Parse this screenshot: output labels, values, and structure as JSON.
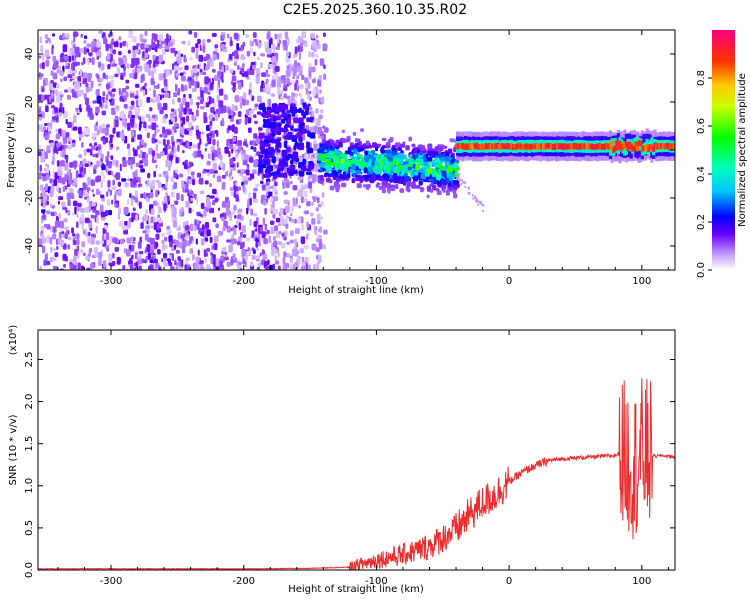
{
  "title": "C2E5.2025.360.10.35.R02",
  "colors": {
    "snr_line": "#ee2a2a",
    "frame": "#000000"
  },
  "chart_data": [
    {
      "type": "heatmap",
      "xlabel": "Height of straight line (km)",
      "ylabel": "Frequency (Hz)",
      "xlim": [
        -355,
        125
      ],
      "ylim": [
        -50,
        50
      ],
      "x_ticks": [
        -300,
        -200,
        -100,
        0,
        100
      ],
      "y_ticks": [
        -40,
        -20,
        0,
        20,
        40
      ],
      "colorbar": {
        "label": "Normalized spectral amplitude",
        "range": [
          0,
          1
        ],
        "ticks": [
          0.0,
          0.2,
          0.4,
          0.6,
          0.8
        ],
        "colormap": "rainbow"
      },
      "features": [
        {
          "region": "noise",
          "x_range": [
            -355,
            -140
          ],
          "y_range": [
            -50,
            50
          ],
          "amplitude": 0.1
        },
        {
          "region": "transition",
          "x_range": [
            -190,
            -150
          ],
          "y_range": [
            -10,
            20
          ],
          "amplitude": 0.2
        },
        {
          "region": "scatter",
          "x_range": [
            -145,
            -40
          ],
          "y_center": -3,
          "y_spread": 10,
          "amplitude": 0.4
        },
        {
          "region": "carrier",
          "x_range": [
            -40,
            125
          ],
          "y_center": 1.5,
          "y_spread": 2,
          "amplitude": 0.95
        }
      ]
    },
    {
      "type": "line",
      "xlabel": "Height of straight line (km)",
      "ylabel": "SNR (10 * v/v)",
      "multiplier": "(x10⁴)",
      "xlim": [
        -355,
        125
      ],
      "ylim": [
        0,
        2.85
      ],
      "x_ticks": [
        -300,
        -200,
        -100,
        0,
        100
      ],
      "y_ticks": [
        0.0,
        0.5,
        1.0,
        1.5,
        2.0,
        2.5
      ],
      "series": [
        {
          "x": [
            -355,
            -300,
            -250,
            -200,
            -150,
            -120,
            -100,
            -80,
            -60,
            -40,
            -30,
            -20,
            -10,
            0,
            10,
            20,
            30,
            40,
            50,
            60,
            70,
            80,
            85,
            90,
            95,
            100,
            105,
            110,
            115,
            120,
            125
          ],
          "y": [
            0.01,
            0.01,
            0.01,
            0.01,
            0.015,
            0.03,
            0.12,
            0.18,
            0.28,
            0.48,
            0.65,
            0.8,
            0.9,
            1.05,
            1.16,
            1.24,
            1.3,
            1.32,
            1.33,
            1.34,
            1.35,
            1.36,
            1.4,
            1.3,
            1.25,
            1.4,
            1.38,
            1.35,
            1.36,
            1.35,
            1.34
          ]
        }
      ]
    }
  ]
}
